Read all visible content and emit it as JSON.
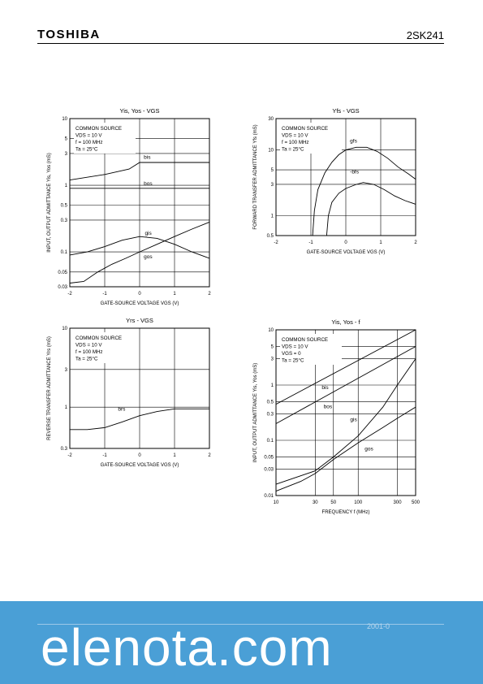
{
  "header": {
    "brand": "TOSHIBA",
    "part": "2SK241"
  },
  "footer": {
    "date": "2001-0",
    "watermark": "elenota.com"
  },
  "colors": {
    "footer_band": "#4a9fd6",
    "watermark": "#ffffff"
  },
  "chart_data": [
    {
      "type": "line",
      "title": "Yis, Yos - VGS",
      "xlabel": "GATE-SOURCE VOLTAGE VGS (V)",
      "ylabel": "INPUT, OUTPUT ADMITTANCE Yis, Yos (mS)",
      "x_log": false,
      "y_log": true,
      "xlim": [
        -2,
        2
      ],
      "ylim": [
        0.03,
        10
      ],
      "xticks": [
        "-2",
        "-1",
        "0",
        "1",
        "2"
      ],
      "yticks": [
        {
          "v": 10,
          "t": "10"
        },
        {
          "v": 5,
          "t": "5"
        },
        {
          "v": 3,
          "t": "3"
        },
        {
          "v": 1,
          "t": "1"
        },
        {
          "v": 0.5,
          "t": "0.5"
        },
        {
          "v": 0.3,
          "t": "0.3"
        },
        {
          "v": 0.1,
          "t": "0.1"
        },
        {
          "v": 0.05,
          "t": "0.05"
        },
        {
          "v": 0.03,
          "t": "0.03"
        }
      ],
      "conditions": [
        "COMMON SOURCE",
        "VDS = 10 V",
        "f = 100 MHz",
        "Ta = 25°C"
      ],
      "series": [
        {
          "name": "bis",
          "x": [
            -2,
            -1,
            -0.3,
            0,
            0.5,
            1,
            1.5,
            2
          ],
          "y": [
            1.2,
            1.45,
            1.75,
            2.2,
            2.2,
            2.2,
            2.2,
            2.2
          ],
          "label_at": [
            0.12,
            2.5
          ]
        },
        {
          "name": "bos",
          "x": [
            -2,
            0,
            1,
            2
          ],
          "y": [
            0.9,
            0.9,
            0.9,
            0.9
          ],
          "label_at": [
            0.12,
            1.0
          ]
        },
        {
          "name": "gis",
          "x": [
            -2,
            -1.5,
            -1,
            -0.5,
            0,
            0.5,
            1,
            1.5,
            2
          ],
          "y": [
            0.09,
            0.1,
            0.12,
            0.15,
            0.17,
            0.16,
            0.13,
            0.1,
            0.08
          ],
          "label_at": [
            0.15,
            0.18
          ]
        },
        {
          "name": "gos",
          "x": [
            -2,
            -1.6,
            -1.2,
            -0.8,
            -0.4,
            0,
            0.5,
            1,
            1.5,
            2
          ],
          "y": [
            0.034,
            0.036,
            0.05,
            0.065,
            0.08,
            0.1,
            0.13,
            0.17,
            0.22,
            0.28
          ],
          "label_at": [
            0.12,
            0.08
          ]
        }
      ]
    },
    {
      "type": "line",
      "title": "Yfs - VGS",
      "xlabel": "GATE-SOURCE VOLTAGE VGS (V)",
      "ylabel": "FORWARD TRANSFER ADMITTANCE Yfs (mS)",
      "x_log": false,
      "y_log": true,
      "xlim": [
        -2,
        2
      ],
      "ylim": [
        0.5,
        30
      ],
      "xticks": [
        "-2",
        "-1",
        "0",
        "1",
        "2"
      ],
      "yticks": [
        {
          "v": 30,
          "t": "30"
        },
        {
          "v": 10,
          "t": "10"
        },
        {
          "v": 5,
          "t": "5"
        },
        {
          "v": 3,
          "t": "3"
        },
        {
          "v": 1,
          "t": "1"
        },
        {
          "v": 0.5,
          "t": "0.5"
        }
      ],
      "conditions": [
        "COMMON SOURCE",
        "VDS = 10 V",
        "f = 100 MHz",
        "Ta = 25°C"
      ],
      "series": [
        {
          "name": "gfs",
          "x": [
            -0.95,
            -0.9,
            -0.8,
            -0.6,
            -0.4,
            -0.2,
            0,
            0.3,
            0.6,
            0.9,
            1.2,
            1.5,
            1.8,
            2
          ],
          "y": [
            0.5,
            1.2,
            2.5,
            4.5,
            6.5,
            8.5,
            10,
            11,
            11,
            9.5,
            7.5,
            5.5,
            4.3,
            3.6
          ],
          "label_at": [
            0.12,
            13
          ]
        },
        {
          "name": "-bfs",
          "x": [
            -0.55,
            -0.5,
            -0.4,
            -0.2,
            0,
            0.3,
            0.5,
            0.8,
            1.1,
            1.4,
            1.7,
            2
          ],
          "y": [
            0.5,
            1,
            1.6,
            2.2,
            2.6,
            3,
            3.2,
            3,
            2.5,
            2,
            1.7,
            1.5
          ],
          "label_at": [
            0.12,
            4.4
          ]
        }
      ]
    },
    {
      "type": "line",
      "title": "Yrs - VGS",
      "xlabel": "GATE-SOURCE VOLTAGE VGS (V)",
      "ylabel": "REVERSE TRANSFER ADMITTANCE Yrs (mS)",
      "x_log": false,
      "y_log": true,
      "xlim": [
        -2,
        2
      ],
      "ylim": [
        0.3,
        10
      ],
      "xticks": [
        "-2",
        "-1",
        "0",
        "1",
        "2"
      ],
      "yticks": [
        {
          "v": 10,
          "t": "10"
        },
        {
          "v": 3,
          "t": "3"
        },
        {
          "v": 1,
          "t": "1"
        },
        {
          "v": 0.3,
          "t": "0.3"
        }
      ],
      "conditions": [
        "COMMON SOURCE",
        "VDS = 10 V",
        "f = 100 MHz",
        "Ta = 25°C"
      ],
      "series": [
        {
          "name": "brs",
          "x": [
            -2,
            -1.5,
            -1,
            -0.5,
            0,
            0.5,
            1,
            1.5,
            2
          ],
          "y": [
            0.52,
            0.52,
            0.55,
            0.65,
            0.78,
            0.88,
            0.95,
            0.95,
            0.95
          ],
          "label_at": [
            -0.62,
            0.9
          ]
        }
      ]
    },
    {
      "type": "line",
      "title": "Yis, Yos - f",
      "xlabel": "FREQUENCY f (MHz)",
      "ylabel": "INPUT, OUTPUT ADMITTANCE Yis, Yos (mS)",
      "x_log": true,
      "y_log": true,
      "xlim": [
        10,
        500
      ],
      "ylim": [
        0.01,
        10
      ],
      "xticks": [
        {
          "v": 10,
          "t": "10"
        },
        {
          "v": 30,
          "t": "30"
        },
        {
          "v": 50,
          "t": "50"
        },
        {
          "v": 100,
          "t": "100"
        },
        {
          "v": 300,
          "t": "300"
        },
        {
          "v": 500,
          "t": "500"
        }
      ],
      "yticks": [
        {
          "v": 10,
          "t": "10"
        },
        {
          "v": 5,
          "t": "5"
        },
        {
          "v": 3,
          "t": "3"
        },
        {
          "v": 1,
          "t": "1"
        },
        {
          "v": 0.5,
          "t": "0.5"
        },
        {
          "v": 0.3,
          "t": "0.3"
        },
        {
          "v": 0.1,
          "t": "0.1"
        },
        {
          "v": 0.05,
          "t": "0.05"
        },
        {
          "v": 0.03,
          "t": "0.03"
        },
        {
          "v": 0.01,
          "t": "0.01"
        }
      ],
      "conditions": [
        "COMMON SOURCE",
        "VDS = 10 V",
        "VGS = 0",
        "Ta = 25°C"
      ],
      "series": [
        {
          "name": "bis",
          "x": [
            10,
            500
          ],
          "y": [
            0.45,
            10
          ],
          "label_at": [
            36,
            0.85
          ]
        },
        {
          "name": "bos",
          "x": [
            10,
            500
          ],
          "y": [
            0.2,
            5
          ],
          "label_at": [
            38,
            0.38
          ]
        },
        {
          "name": "gis",
          "x": [
            10,
            30,
            50,
            100,
            200,
            300,
            500
          ],
          "y": [
            0.016,
            0.028,
            0.05,
            0.12,
            0.4,
            1,
            3
          ],
          "label_at": [
            80,
            0.22
          ]
        },
        {
          "name": "gos",
          "x": [
            10,
            20,
            30,
            50,
            100,
            200,
            300,
            500
          ],
          "y": [
            0.012,
            0.018,
            0.025,
            0.045,
            0.09,
            0.17,
            0.25,
            0.4
          ],
          "label_at": [
            120,
            0.065
          ]
        }
      ]
    }
  ]
}
